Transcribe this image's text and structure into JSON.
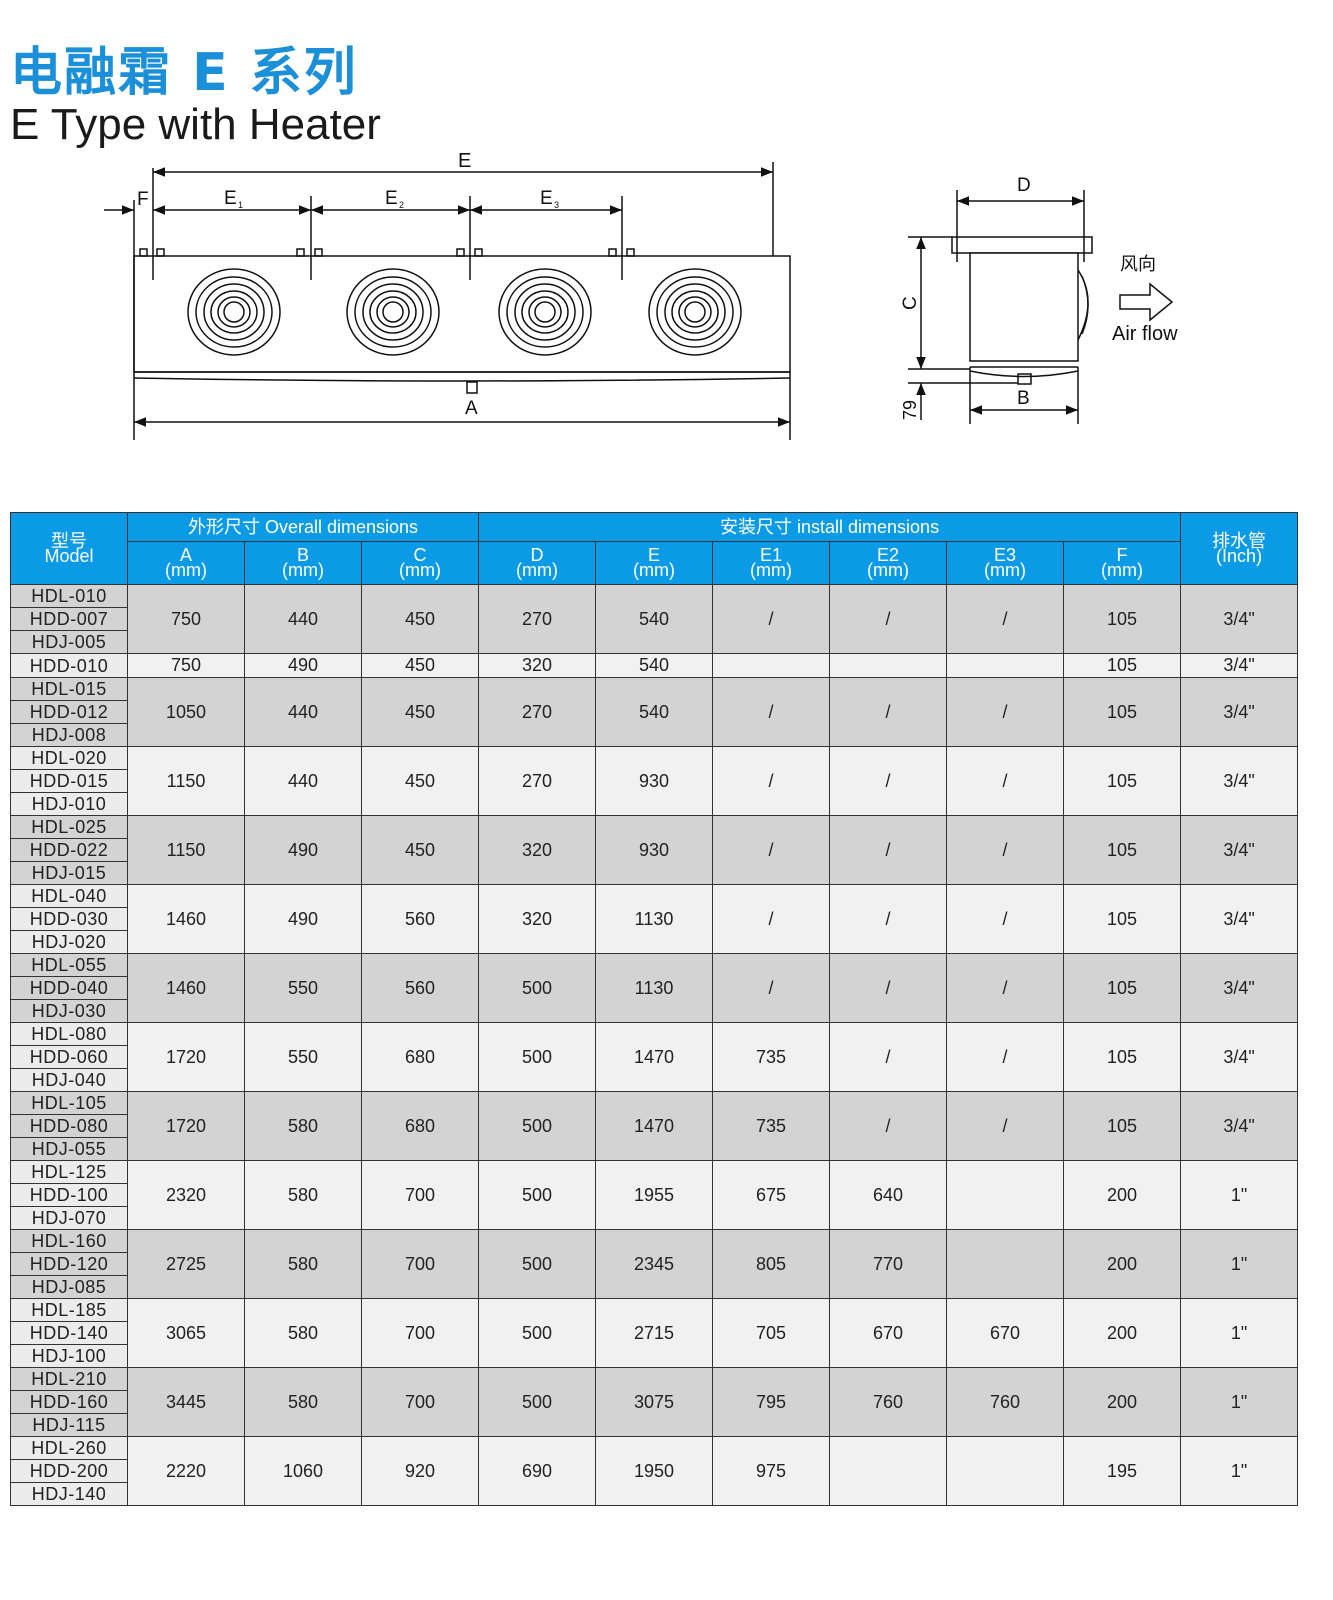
{
  "header": {
    "title_cn": "电融霜 E 系列",
    "title_en": "E Type with Heater"
  },
  "diagram": {
    "front_labels": {
      "E": "E",
      "F": "F",
      "E1": "E",
      "E1_sub": "1",
      "E2": "E",
      "E2_sub": "2",
      "E3": "E",
      "E3_sub": "3",
      "A": "A"
    },
    "side_labels": {
      "D": "D",
      "C": "C",
      "B": "B",
      "h79": "79",
      "airflow_cn": "风向",
      "airflow_en": "Air flow"
    }
  },
  "table": {
    "header": {
      "model_cn": "型号",
      "model_en": "Model",
      "overall": "外形尺寸 Overall dimensions",
      "install": "安装尺寸 install dimensions",
      "drain_cn": "排水管",
      "drain_en": "(Inch)",
      "columns": [
        {
          "name": "A",
          "unit": "(mm)"
        },
        {
          "name": "B",
          "unit": "(mm)"
        },
        {
          "name": "C",
          "unit": "(mm)"
        },
        {
          "name": "D",
          "unit": "(mm)"
        },
        {
          "name": "E",
          "unit": "(mm)"
        },
        {
          "name": "E1",
          "unit": "(mm)"
        },
        {
          "name": "E2",
          "unit": "(mm)"
        },
        {
          "name": "E3",
          "unit": "(mm)"
        },
        {
          "name": "F",
          "unit": "(mm)"
        }
      ]
    },
    "groups": [
      {
        "models": [
          "HDL-010",
          "HDD-007",
          "HDJ-005"
        ],
        "values": [
          "750",
          "440",
          "450",
          "270",
          "540",
          "/",
          "/",
          "/",
          "105",
          "3/4\""
        ]
      },
      {
        "models": [
          "HDD-010"
        ],
        "values": [
          "750",
          "490",
          "450",
          "320",
          "540",
          "",
          "",
          "",
          "105",
          "3/4\""
        ]
      },
      {
        "models": [
          "HDL-015",
          "HDD-012",
          "HDJ-008"
        ],
        "values": [
          "1050",
          "440",
          "450",
          "270",
          "540",
          "/",
          "/",
          "/",
          "105",
          "3/4\""
        ]
      },
      {
        "models": [
          "HDL-020",
          "HDD-015",
          "HDJ-010"
        ],
        "values": [
          "1150",
          "440",
          "450",
          "270",
          "930",
          "/",
          "/",
          "/",
          "105",
          "3/4\""
        ]
      },
      {
        "models": [
          "HDL-025",
          "HDD-022",
          "HDJ-015"
        ],
        "values": [
          "1150",
          "490",
          "450",
          "320",
          "930",
          "/",
          "/",
          "/",
          "105",
          "3/4\""
        ]
      },
      {
        "models": [
          "HDL-040",
          "HDD-030",
          "HDJ-020"
        ],
        "values": [
          "1460",
          "490",
          "560",
          "320",
          "1130",
          "/",
          "/",
          "/",
          "105",
          "3/4\""
        ]
      },
      {
        "models": [
          "HDL-055",
          "HDD-040",
          "HDJ-030"
        ],
        "values": [
          "1460",
          "550",
          "560",
          "500",
          "1130",
          "/",
          "/",
          "/",
          "105",
          "3/4\""
        ]
      },
      {
        "models": [
          "HDL-080",
          "HDD-060",
          "HDJ-040"
        ],
        "values": [
          "1720",
          "550",
          "680",
          "500",
          "1470",
          "735",
          "/",
          "/",
          "105",
          "3/4\""
        ]
      },
      {
        "models": [
          "HDL-105",
          "HDD-080",
          "HDJ-055"
        ],
        "values": [
          "1720",
          "580",
          "680",
          "500",
          "1470",
          "735",
          "/",
          "/",
          "105",
          "3/4\""
        ]
      },
      {
        "models": [
          "HDL-125",
          "HDD-100",
          "HDJ-070"
        ],
        "values": [
          "2320",
          "580",
          "700",
          "500",
          "1955",
          "675",
          "640",
          "",
          "200",
          "1\""
        ]
      },
      {
        "models": [
          "HDL-160",
          "HDD-120",
          "HDJ-085"
        ],
        "values": [
          "2725",
          "580",
          "700",
          "500",
          "2345",
          "805",
          "770",
          "",
          "200",
          "1\""
        ]
      },
      {
        "models": [
          "HDL-185",
          "HDD-140",
          "HDJ-100"
        ],
        "values": [
          "3065",
          "580",
          "700",
          "500",
          "2715",
          "705",
          "670",
          "670",
          "200",
          "1\""
        ]
      },
      {
        "models": [
          "HDL-210",
          "HDD-160",
          "HDJ-115"
        ],
        "values": [
          "3445",
          "580",
          "700",
          "500",
          "3075",
          "795",
          "760",
          "760",
          "200",
          "1\""
        ]
      },
      {
        "models": [
          "HDL-260",
          "HDD-200",
          "HDJ-140"
        ],
        "values": [
          "2220",
          "1060",
          "920",
          "690",
          "1950",
          "975",
          "",
          "",
          "195",
          "1\""
        ]
      }
    ]
  },
  "colors": {
    "accent": "#0a9ae6",
    "title": "#1b8fd8",
    "row_dark": "#d3d3d3",
    "row_light": "#f1f1f1"
  }
}
